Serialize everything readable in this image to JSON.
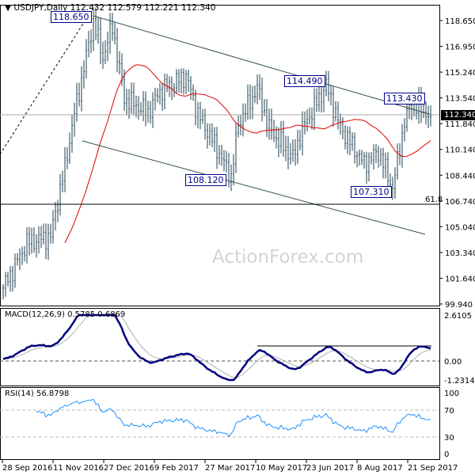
{
  "header": {
    "symbol": "USDJPY,Daily",
    "ohlc": "112.432 112.579 112.221 112.340"
  },
  "watermark": "ActionForex.com",
  "colors": {
    "bars": "#1e3f52",
    "ma": "#e00000",
    "macd": "#00007f",
    "signal": "#b0b0b0",
    "rsi": "#1e90ff"
  },
  "chart_data": [
    {
      "type": "line",
      "title": "USDJPY,Daily",
      "price_axis": {
        "ylim": [
          99.94,
          118.65
        ],
        "ticks": [
          "118.650",
          "116.950",
          "115.240",
          "113.540",
          "111.840",
          "110.140",
          "108.440",
          "106.740",
          "105.040",
          "103.340",
          "101.640",
          "99.940"
        ]
      },
      "current_price": "112.340",
      "x_ticks": [
        "28 Sep 2016",
        "11 Nov 2016",
        "27 Dec 2016",
        "9 Feb 2017",
        "27 Mar 2017",
        "10 May 2017",
        "23 Jun 2017",
        "8 Aug 2017",
        "21 Sep 2017"
      ],
      "close_keypoints": [
        [
          0,
          101.0
        ],
        [
          10,
          104.0
        ],
        [
          20,
          104.4
        ],
        [
          22,
          106.0
        ],
        [
          26,
          109.0
        ],
        [
          30,
          112.5
        ],
        [
          34,
          115.5
        ],
        [
          38,
          118.6
        ],
        [
          42,
          116.2
        ],
        [
          46,
          118.3
        ],
        [
          51,
          113.5
        ],
        [
          61,
          112.6
        ],
        [
          66,
          114.0
        ],
        [
          77,
          115.0
        ],
        [
          82,
          112.5
        ],
        [
          89,
          110.5
        ],
        [
          96,
          108.3
        ],
        [
          99,
          111.8
        ],
        [
          107,
          114.2
        ],
        [
          112,
          111.5
        ],
        [
          122,
          109.6
        ],
        [
          126,
          111.5
        ],
        [
          136,
          114.4
        ],
        [
          142,
          111.6
        ],
        [
          152,
          109.2
        ],
        [
          158,
          110.0
        ],
        [
          164,
          107.6
        ],
        [
          169,
          112.0
        ],
        [
          172,
          113.2
        ],
        [
          180,
          112.34
        ]
      ],
      "annotations": [
        "118.650",
        "114.490",
        "113.430",
        "108.120",
        "107.310",
        "61.8"
      ]
    },
    {
      "type": "line",
      "title": "MACD(12,26,9) 0.5785 0.6869",
      "ylim": [
        -1.2314,
        2.6105
      ],
      "ticks": [
        "2.6105",
        "0.00",
        "-1.2314"
      ]
    },
    {
      "type": "line",
      "title": "RSI(14) 56.8798",
      "ylim": [
        0,
        100
      ],
      "ticks": [
        "100",
        "70",
        "30",
        "0"
      ]
    }
  ]
}
